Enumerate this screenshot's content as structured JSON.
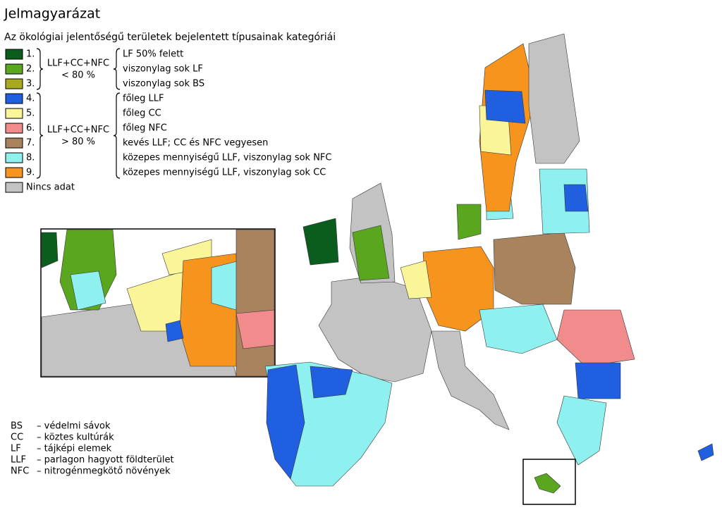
{
  "legend": {
    "title": "Jelmagyarázat",
    "subtitle": "Az ökológiai jelentőségű területek bejelentett típusainak kategóriái",
    "items": [
      {
        "label": "1.",
        "color": "#0b5d1e"
      },
      {
        "label": "2.",
        "color": "#5aa61f"
      },
      {
        "label": "3.",
        "color": "#a8a821"
      },
      {
        "label": "4.",
        "color": "#1f5fe0"
      },
      {
        "label": "5.",
        "color": "#fbf59a"
      },
      {
        "label": "6.",
        "color": "#f28c8c"
      },
      {
        "label": "7.",
        "color": "#a9835e"
      },
      {
        "label": "8.",
        "color": "#8ff0f0"
      },
      {
        "label": "9.",
        "color": "#f7941d"
      },
      {
        "label": "Nincs adat",
        "color": "#c3c3c3"
      }
    ],
    "groups": [
      {
        "lines": [
          "LLF+CC+NFC",
          "< 80 %"
        ]
      },
      {
        "lines": [
          "LLF+CC+NFC",
          "> 80 %"
        ]
      }
    ],
    "descriptions": [
      "LF 50% felett",
      "viszonylag sok LF",
      "viszonylag sok BS",
      "főleg LLF",
      "főleg CC",
      "főleg NFC",
      "kevés LLF; CC és NFC vegyesen",
      "közepes mennyiségű LLF, viszonylag sok NFC",
      "közepes mennyiségű LLF, viszonylag sok CC"
    ]
  },
  "abbreviations": [
    {
      "abbr": "BS",
      "text": "– védelmi sávok"
    },
    {
      "abbr": "CC",
      "text": "– köztes kultúrák"
    },
    {
      "abbr": "LF",
      "text": "– tájképi elemek"
    },
    {
      "abbr": "LLF",
      "text": "– parlagon hagyott földterület"
    },
    {
      "abbr": "NFC",
      "text": "– nitrogénmegkötő növények"
    }
  ]
}
